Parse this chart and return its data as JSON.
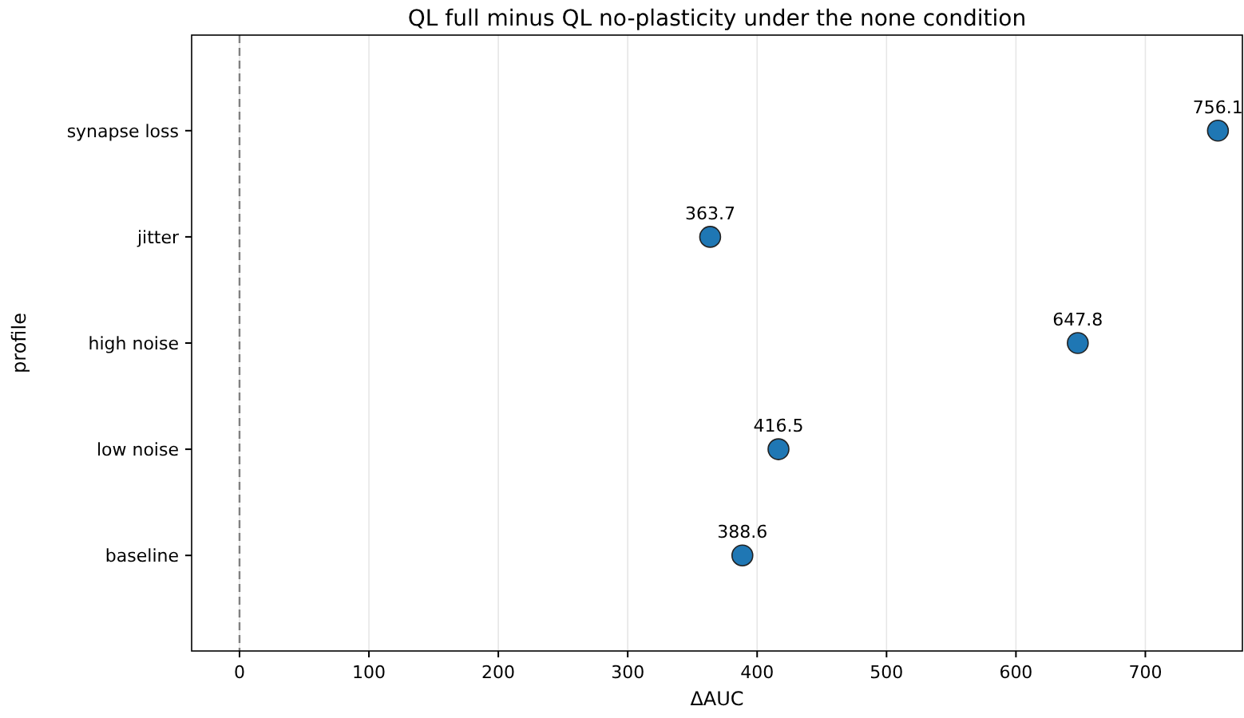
{
  "chart_data": {
    "type": "scatter",
    "orientation": "horizontal",
    "title": "QL full minus QL no-plasticity under the none condition",
    "xlabel": "ΔAUC",
    "ylabel": "profile",
    "categories": [
      "synapse loss",
      "jitter",
      "high noise",
      "low noise",
      "baseline"
    ],
    "values": [
      756.1,
      363.7,
      647.8,
      416.5,
      388.6
    ],
    "color": "#1f77b4",
    "marker": "circle",
    "data_labels": true,
    "xlim": [
      -37,
      775
    ],
    "xticks": [
      0,
      100,
      200,
      300,
      400,
      500,
      600,
      700
    ],
    "grid": "x",
    "ref_lines": [
      {
        "axis": "x",
        "value": 0,
        "color": "#808080",
        "line_style": "dashed"
      }
    ]
  }
}
